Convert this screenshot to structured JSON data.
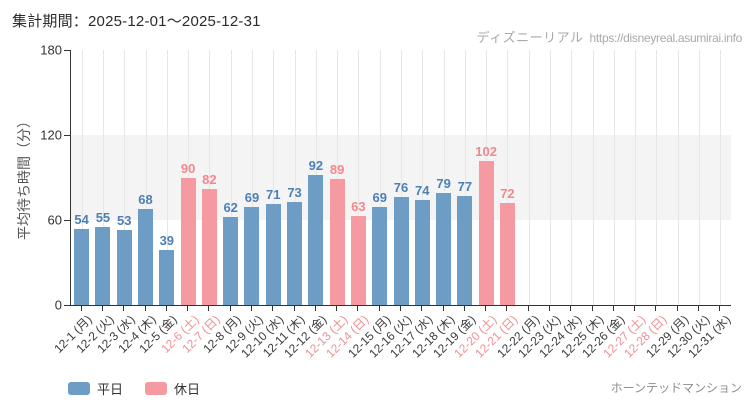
{
  "header": {
    "title": "集計期間：2025-12-01～2025-12-31",
    "watermark_brand": "ディズニーリアル",
    "watermark_url": "https://disneyreal.asumirai.info"
  },
  "footer": {
    "attraction": "ホーンテッドマンション"
  },
  "chart_data": {
    "type": "bar",
    "title": "",
    "xlabel": "",
    "ylabel": "平均待ち時間（分）",
    "ylim": [
      0,
      180
    ],
    "yticks": [
      0,
      60,
      120,
      180
    ],
    "grid": "vertical-light, shaded band between 60 and 120",
    "legend_position": "bottom-left",
    "categories": [
      "12-1 (月)",
      "12-2 (火)",
      "12-3 (水)",
      "12-4 (木)",
      "12-5 (金)",
      "12-6 (土)",
      "12-7 (日)",
      "12-8 (月)",
      "12-9 (火)",
      "12-10 (水)",
      "12-11 (木)",
      "12-12 (金)",
      "12-13 (土)",
      "12-14 (日)",
      "12-15 (月)",
      "12-16 (火)",
      "12-17 (水)",
      "12-18 (木)",
      "12-19 (金)",
      "12-20 (土)",
      "12-21 (日)",
      "12-22 (月)",
      "12-23 (火)",
      "12-24 (水)",
      "12-25 (木)",
      "12-26 (金)",
      "12-27 (土)",
      "12-28 (日)",
      "12-29 (月)",
      "12-30 (火)",
      "12-31 (水)"
    ],
    "values": [
      54,
      55,
      53,
      68,
      39,
      90,
      82,
      62,
      69,
      71,
      73,
      92,
      89,
      63,
      69,
      76,
      74,
      79,
      77,
      102,
      72,
      null,
      null,
      null,
      null,
      null,
      null,
      null,
      null,
      null,
      null
    ],
    "day_types": [
      "weekday",
      "weekday",
      "weekday",
      "weekday",
      "weekday",
      "holiday",
      "holiday",
      "weekday",
      "weekday",
      "weekday",
      "weekday",
      "weekday",
      "holiday",
      "holiday",
      "weekday",
      "weekday",
      "weekday",
      "weekday",
      "weekday",
      "holiday",
      "holiday",
      "weekday",
      "weekday",
      "weekday",
      "weekday",
      "weekday",
      "holiday",
      "holiday",
      "weekday",
      "weekday",
      "weekday"
    ],
    "legend": [
      {
        "label": "平日",
        "type": "weekday"
      },
      {
        "label": "休日",
        "type": "holiday"
      }
    ],
    "colors": {
      "weekday_bar": "#6d9cc5",
      "holiday_bar": "#f69aa1",
      "weekday_value_label": "#4d7fb5",
      "holiday_value_label": "#f5858e",
      "weekday_tick_label": "#3a3a3a",
      "holiday_tick_label": "#ee8f93",
      "band_fill": "#f4f4f4",
      "gridline": "#e7e7e7",
      "axis": "#333333"
    }
  }
}
